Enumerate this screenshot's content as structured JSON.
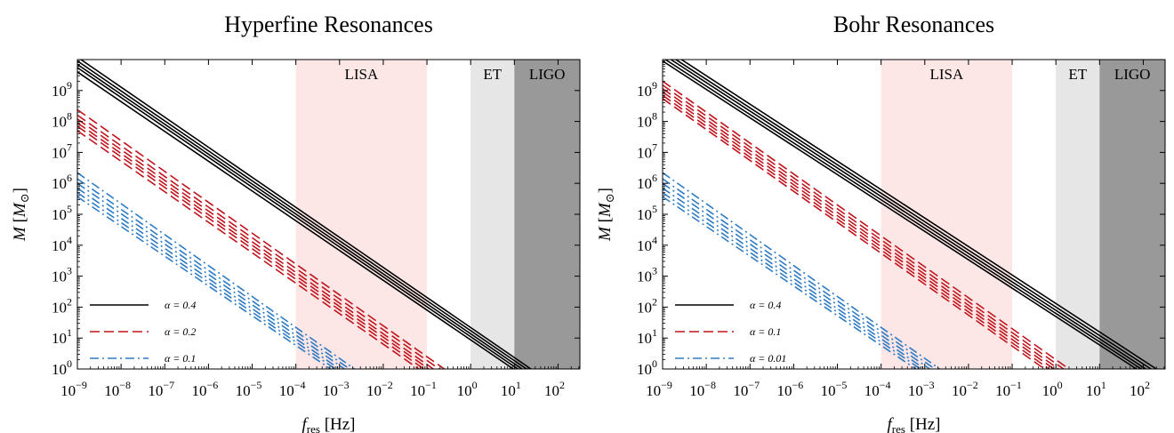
{
  "chart_data": [
    {
      "type": "line",
      "title": "Hyperfine Resonances",
      "xlabel": "f_res [Hz]",
      "ylabel": "M [M_⊙]",
      "xscale": "log",
      "yscale": "log",
      "xlim": [
        1e-09,
        316
      ],
      "ylim": [
        1,
        10000000000.0
      ],
      "xtick_exponents": [
        -9,
        -8,
        -7,
        -6,
        -5,
        -4,
        -3,
        -2,
        -1,
        0,
        1,
        2
      ],
      "ytick_exponents": [
        0,
        1,
        2,
        3,
        4,
        5,
        6,
        7,
        8,
        9
      ],
      "grid": false,
      "legend_position": "bottom-left",
      "bands": [
        {
          "label": "LISA",
          "x": [
            0.0001,
            0.1
          ],
          "color": "#fde6e6"
        },
        {
          "label": "ET",
          "x": [
            1,
            10
          ],
          "color": "#e6e6e6"
        },
        {
          "label": "LIGO",
          "x": [
            10,
            316
          ],
          "color": "#999999"
        }
      ],
      "series": [
        {
          "name": "α = 0.4",
          "style": "solid",
          "color": "#000000",
          "lines": [
            {
              "x": [
                1e-09,
                24
              ],
              "y": [
                12000000000.0,
                1
              ]
            },
            {
              "x": [
                1e-09,
                19
              ],
              "y": [
                9000000000.0,
                1
              ]
            },
            {
              "x": [
                1e-09,
                15
              ],
              "y": [
                7000000000.0,
                1
              ]
            },
            {
              "x": [
                1e-09,
                12
              ],
              "y": [
                5500000000.0,
                1
              ]
            },
            {
              "x": [
                1e-09,
                9.5
              ],
              "y": [
                4000000000.0,
                1
              ]
            }
          ]
        },
        {
          "name": "α = 0.2",
          "style": "dashed",
          "color": "#c0141d",
          "lines": [
            {
              "x": [
                1e-09,
                0.25
              ],
              "y": [
                240000000.0,
                1
              ]
            },
            {
              "x": [
                1e-09,
                0.19
              ],
              "y": [
                160000000.0,
                1
              ]
            },
            {
              "x": [
                1e-09,
                0.14
              ],
              "y": [
                120000000.0,
                1
              ]
            },
            {
              "x": [
                1e-09,
                0.11
              ],
              "y": [
                90000000.0,
                1
              ]
            },
            {
              "x": [
                1e-09,
                0.085
              ],
              "y": [
                70000000.0,
                1
              ]
            },
            {
              "x": [
                1e-09,
                0.065
              ],
              "y": [
                50000000.0,
                1
              ]
            }
          ]
        },
        {
          "name": "α = 0.1",
          "style": "dashdot",
          "color": "#2e7bc4",
          "lines": [
            {
              "x": [
                1e-09,
                0.0022
              ],
              "y": [
                2200000.0,
                1
              ]
            },
            {
              "x": [
                1e-09,
                0.0017
              ],
              "y": [
                1400000.0,
                1
              ]
            },
            {
              "x": [
                1e-09,
                0.0013
              ],
              "y": [
                1000000.0,
                1
              ]
            },
            {
              "x": [
                1e-09,
                0.001
              ],
              "y": [
                700000.0,
                1
              ]
            },
            {
              "x": [
                1e-09,
                0.0008
              ],
              "y": [
                500000.0,
                1
              ]
            },
            {
              "x": [
                1e-09,
                0.00062
              ],
              "y": [
                370000.0,
                1
              ]
            }
          ]
        }
      ]
    },
    {
      "type": "line",
      "title": "Bohr Resonances",
      "xlabel": "f_res [Hz]",
      "ylabel": "M [M_⊙]",
      "xscale": "log",
      "yscale": "log",
      "xlim": [
        1e-09,
        316
      ],
      "ylim": [
        1,
        10000000000.0
      ],
      "xtick_exponents": [
        -9,
        -8,
        -7,
        -6,
        -5,
        -4,
        -3,
        -2,
        -1,
        0,
        1,
        2
      ],
      "ytick_exponents": [
        0,
        1,
        2,
        3,
        4,
        5,
        6,
        7,
        8,
        9
      ],
      "grid": false,
      "legend_position": "bottom-left",
      "bands": [
        {
          "label": "LISA",
          "x": [
            0.0001,
            0.1
          ],
          "color": "#fde6e6"
        },
        {
          "label": "ET",
          "x": [
            1,
            10
          ],
          "color": "#e6e6e6"
        },
        {
          "label": "LIGO",
          "x": [
            10,
            316
          ],
          "color": "#999999"
        }
      ],
      "series": [
        {
          "name": "α = 0.4",
          "style": "solid",
          "color": "#000000",
          "lines": [
            {
              "x": [
                1e-09,
                200
              ],
              "y": [
                25000000000.0,
                1
              ]
            },
            {
              "x": [
                1e-09,
                150
              ],
              "y": [
                19000000000.0,
                1
              ]
            },
            {
              "x": [
                1e-09,
                115
              ],
              "y": [
                15000000000.0,
                1
              ]
            },
            {
              "x": [
                1e-09,
                90
              ],
              "y": [
                11500000000.0,
                1
              ]
            },
            {
              "x": [
                1e-09,
                70
              ],
              "y": [
                9000000000.0,
                1
              ]
            }
          ]
        },
        {
          "name": "α = 0.1",
          "style": "dashed",
          "color": "#c0141d",
          "lines": [
            {
              "x": [
                1e-09,
                2.0
              ],
              "y": [
                2000000000.0,
                1
              ]
            },
            {
              "x": [
                1e-09,
                1.5
              ],
              "y": [
                1500000000.0,
                1
              ]
            },
            {
              "x": [
                1e-09,
                1.15
              ],
              "y": [
                1150000000.0,
                1
              ]
            },
            {
              "x": [
                1e-09,
                0.9
              ],
              "y": [
                900000000.0,
                1
              ]
            },
            {
              "x": [
                1e-09,
                0.7
              ],
              "y": [
                700000000.0,
                1
              ]
            },
            {
              "x": [
                1e-09,
                0.55
              ],
              "y": [
                550000000.0,
                1
              ]
            }
          ]
        },
        {
          "name": "α = 0.01",
          "style": "dashdot",
          "color": "#2e7bc4",
          "lines": [
            {
              "x": [
                1e-09,
                0.0022
              ],
              "y": [
                2200000.0,
                1
              ]
            },
            {
              "x": [
                1e-09,
                0.0017
              ],
              "y": [
                1400000.0,
                1
              ]
            },
            {
              "x": [
                1e-09,
                0.0013
              ],
              "y": [
                1000000.0,
                1
              ]
            },
            {
              "x": [
                1e-09,
                0.001
              ],
              "y": [
                700000.0,
                1
              ]
            },
            {
              "x": [
                1e-09,
                0.0008
              ],
              "y": [
                500000.0,
                1
              ]
            },
            {
              "x": [
                1e-09,
                0.00062
              ],
              "y": [
                370000.0,
                1
              ]
            }
          ]
        }
      ]
    }
  ]
}
